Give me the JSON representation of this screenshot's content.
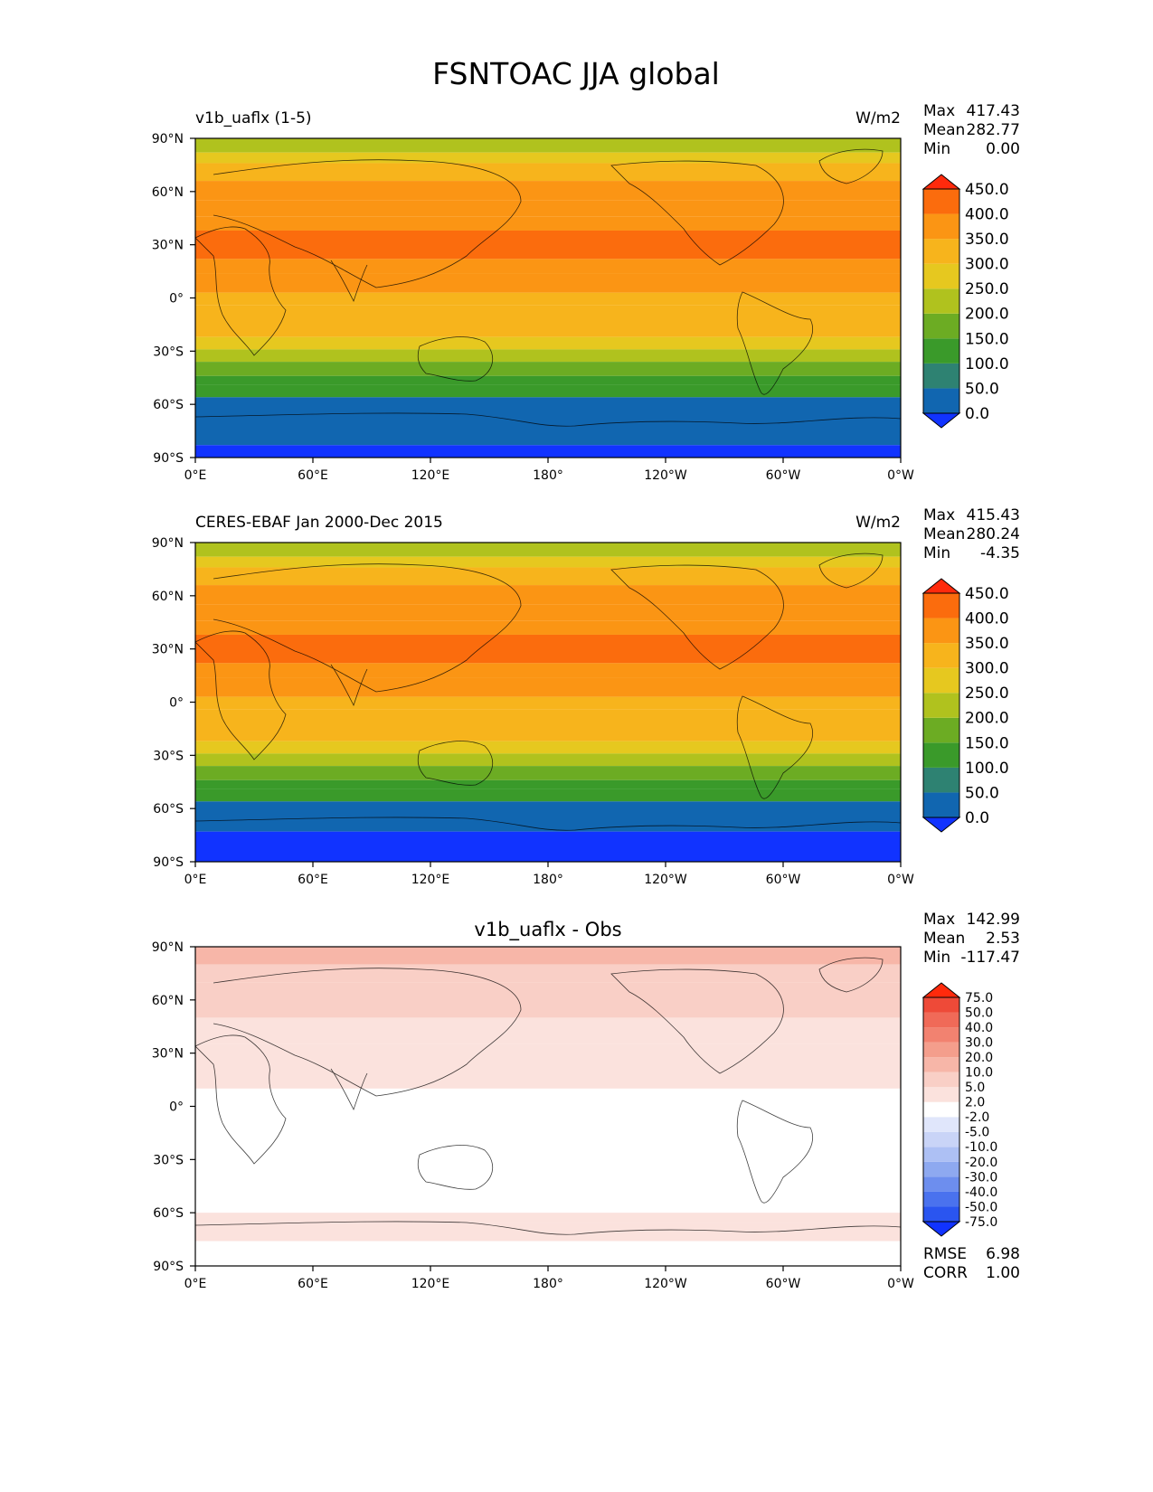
{
  "figure_title": "FSNTOAC JJA global",
  "chart_data": [
    {
      "type": "heatmap",
      "title_left": "v1b_uaflx (1-5)",
      "title_right": "W/m2",
      "title_center": "",
      "stats": [
        {
          "label": "Max",
          "value": "417.43"
        },
        {
          "label": "Mean",
          "value": "282.77"
        },
        {
          "label": "Min",
          "value": "0.00"
        }
      ],
      "x_ticks": [
        "0°E",
        "60°E",
        "120°E",
        "180°",
        "120°W",
        "60°W",
        "0°W"
      ],
      "y_ticks": [
        "90°N",
        "60°N",
        "30°N",
        "0°",
        "30°S",
        "60°S",
        "90°S"
      ],
      "xlim": [
        0,
        360
      ],
      "ylim": [
        -90,
        90
      ],
      "colorbar": {
        "extend": "both",
        "colors": [
          "#1133ff",
          "#1166b0",
          "#2e8272",
          "#3a9a2a",
          "#6cac23",
          "#b0c21e",
          "#e6c81f",
          "#f7b41c",
          "#fb9514",
          "#fb6c0d",
          "#ff2a0c"
        ],
        "labels": [
          "0.0",
          "50.0",
          "100.0",
          "150.0",
          "200.0",
          "250.0",
          "300.0",
          "350.0",
          "400.0",
          "450.0"
        ]
      },
      "zonal_bands": [
        {
          "lat": [
            82,
            90
          ],
          "value": 230
        },
        {
          "lat": [
            76,
            82
          ],
          "value": 260
        },
        {
          "lat": [
            66,
            76
          ],
          "value": 310
        },
        {
          "lat": [
            55,
            66
          ],
          "value": 360
        },
        {
          "lat": [
            46,
            55
          ],
          "value": 380
        },
        {
          "lat": [
            38,
            46
          ],
          "value": 390
        },
        {
          "lat": [
            22,
            38
          ],
          "value": 410
        },
        {
          "lat": [
            14,
            22
          ],
          "value": 390
        },
        {
          "lat": [
            3,
            14
          ],
          "value": 360
        },
        {
          "lat": [
            -4,
            3
          ],
          "value": 345
        },
        {
          "lat": [
            -13,
            -4
          ],
          "value": 330
        },
        {
          "lat": [
            -22,
            -13
          ],
          "value": 305
        },
        {
          "lat": [
            -29,
            -22
          ],
          "value": 260
        },
        {
          "lat": [
            -36,
            -29
          ],
          "value": 230
        },
        {
          "lat": [
            -44,
            -36
          ],
          "value": 170
        },
        {
          "lat": [
            -49,
            -44
          ],
          "value": 140
        },
        {
          "lat": [
            -56,
            -49
          ],
          "value": 100
        },
        {
          "lat": [
            -83,
            -56
          ],
          "value": 30
        },
        {
          "lat": [
            -90,
            -83
          ],
          "value": -10
        }
      ]
    },
    {
      "type": "heatmap",
      "title_left": "CERES-EBAF Jan 2000-Dec 2015",
      "title_right": "W/m2",
      "title_center": "",
      "stats": [
        {
          "label": "Max",
          "value": "415.43"
        },
        {
          "label": "Mean",
          "value": "280.24"
        },
        {
          "label": "Min",
          "value": "-4.35"
        }
      ],
      "x_ticks": [
        "0°E",
        "60°E",
        "120°E",
        "180°",
        "120°W",
        "60°W",
        "0°W"
      ],
      "y_ticks": [
        "90°N",
        "60°N",
        "30°N",
        "0°",
        "30°S",
        "60°S",
        "90°S"
      ],
      "xlim": [
        0,
        360
      ],
      "ylim": [
        -90,
        90
      ],
      "colorbar": {
        "extend": "both",
        "colors": [
          "#1133ff",
          "#1166b0",
          "#2e8272",
          "#3a9a2a",
          "#6cac23",
          "#b0c21e",
          "#e6c81f",
          "#f7b41c",
          "#fb9514",
          "#fb6c0d",
          "#ff2a0c"
        ],
        "labels": [
          "0.0",
          "50.0",
          "100.0",
          "150.0",
          "200.0",
          "250.0",
          "300.0",
          "350.0",
          "400.0",
          "450.0"
        ]
      },
      "zonal_bands": [
        {
          "lat": [
            82,
            90
          ],
          "value": 230
        },
        {
          "lat": [
            76,
            82
          ],
          "value": 260
        },
        {
          "lat": [
            66,
            76
          ],
          "value": 310
        },
        {
          "lat": [
            55,
            66
          ],
          "value": 360
        },
        {
          "lat": [
            46,
            55
          ],
          "value": 380
        },
        {
          "lat": [
            38,
            46
          ],
          "value": 390
        },
        {
          "lat": [
            22,
            38
          ],
          "value": 410
        },
        {
          "lat": [
            14,
            22
          ],
          "value": 390
        },
        {
          "lat": [
            3,
            14
          ],
          "value": 360
        },
        {
          "lat": [
            -4,
            3
          ],
          "value": 345
        },
        {
          "lat": [
            -13,
            -4
          ],
          "value": 330
        },
        {
          "lat": [
            -22,
            -13
          ],
          "value": 305
        },
        {
          "lat": [
            -29,
            -22
          ],
          "value": 260
        },
        {
          "lat": [
            -36,
            -29
          ],
          "value": 230
        },
        {
          "lat": [
            -44,
            -36
          ],
          "value": 170
        },
        {
          "lat": [
            -49,
            -44
          ],
          "value": 140
        },
        {
          "lat": [
            -56,
            -49
          ],
          "value": 100
        },
        {
          "lat": [
            -73,
            -56
          ],
          "value": 30
        },
        {
          "lat": [
            -90,
            -73
          ],
          "value": -10
        }
      ]
    },
    {
      "type": "heatmap",
      "title_left": "",
      "title_right": "",
      "title_center": "v1b_uaflx - Obs",
      "stats": [
        {
          "label": "Max",
          "value": "142.99"
        },
        {
          "label": "Mean",
          "value": "2.53"
        },
        {
          "label": "Min",
          "value": "-117.47"
        }
      ],
      "bottom_stats": [
        {
          "label": "RMSE",
          "value": "6.98"
        },
        {
          "label": "CORR",
          "value": "1.00"
        }
      ],
      "x_ticks": [
        "0°E",
        "60°E",
        "120°E",
        "180°",
        "120°W",
        "60°W",
        "0°W"
      ],
      "y_ticks": [
        "90°N",
        "60°N",
        "30°N",
        "0°",
        "30°S",
        "60°S",
        "90°S"
      ],
      "xlim": [
        0,
        360
      ],
      "ylim": [
        -90,
        90
      ],
      "colorbar": {
        "extend": "both",
        "colors": [
          "#1133ff",
          "#2a55f0",
          "#4a72ee",
          "#6d8eee",
          "#8ea9f0",
          "#adc0f4",
          "#c9d4f7",
          "#e0e6fb",
          "#ffffff",
          "#fbe2dd",
          "#f9cfc6",
          "#f7b6a8",
          "#f49e8c",
          "#f28270",
          "#f06a58",
          "#ee4a38",
          "#ff2a0c"
        ],
        "labels": [
          "-75.0",
          "-50.0",
          "-40.0",
          "-30.0",
          "-20.0",
          "-10.0",
          "-5.0",
          "-2.0",
          "2.0",
          "5.0",
          "10.0",
          "20.0",
          "30.0",
          "40.0",
          "50.0",
          "75.0"
        ]
      },
      "zonal_bands": [
        {
          "lat": [
            80,
            90
          ],
          "value": 15
        },
        {
          "lat": [
            70,
            80
          ],
          "value": 8
        },
        {
          "lat": [
            50,
            70
          ],
          "value": 6
        },
        {
          "lat": [
            35,
            50
          ],
          "value": 3
        },
        {
          "lat": [
            10,
            35
          ],
          "value": 3
        },
        {
          "lat": [
            -60,
            10
          ],
          "value": 0
        },
        {
          "lat": [
            -66,
            -60
          ],
          "value": 3
        },
        {
          "lat": [
            -76,
            -66
          ],
          "value": 4
        },
        {
          "lat": [
            -90,
            -76
          ],
          "value": 0
        }
      ]
    }
  ]
}
